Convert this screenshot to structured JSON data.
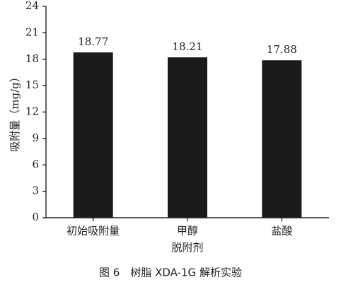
{
  "chart_data": {
    "type": "bar",
    "categories": [
      "初始吸附量",
      "甲醇",
      "盐酸"
    ],
    "values": [
      18.77,
      18.21,
      17.88
    ],
    "color": "#1c1a1a",
    "ylim": [
      0,
      24
    ],
    "yticks": [
      0,
      3,
      6,
      9,
      12,
      15,
      18,
      21,
      24
    ],
    "y_label": "吸附量（mg/g）",
    "x_label": "脱附剂",
    "caption": "图 6　树脂 XDA-1G 解析实验"
  }
}
